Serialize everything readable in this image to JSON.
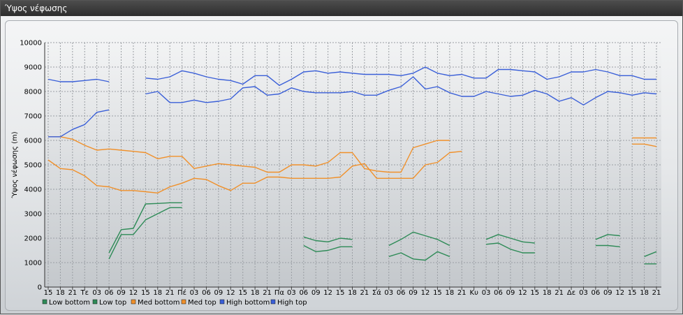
{
  "window": {
    "title": "Ύψος νέφωσης"
  },
  "chart_data": {
    "type": "line",
    "title": "",
    "xlabel": "",
    "ylabel": "Ύψος νέφωσης (m)",
    "ylim": [
      0,
      10000
    ],
    "yticks": [
      0,
      1000,
      2000,
      3000,
      4000,
      5000,
      6000,
      7000,
      8000,
      9000,
      10000
    ],
    "grid": true,
    "legend_position": "bottom-left",
    "categories": [
      "15",
      "18",
      "21",
      "Τε",
      "03",
      "06",
      "09",
      "12",
      "15",
      "18",
      "21",
      "Πέ",
      "03",
      "06",
      "09",
      "12",
      "15",
      "18",
      "21",
      "Πα",
      "03",
      "06",
      "09",
      "12",
      "15",
      "18",
      "21",
      "Σά",
      "03",
      "06",
      "09",
      "12",
      "15",
      "18",
      "21",
      "Κυ",
      "03",
      "06",
      "09",
      "12",
      "15",
      "18",
      "21",
      "Δε",
      "03",
      "06",
      "09",
      "12",
      "15",
      "18",
      "21"
    ],
    "series": [
      {
        "name": "Low bottom",
        "color": "#2e8b57",
        "values": [
          null,
          null,
          null,
          null,
          null,
          1150,
          2150,
          2150,
          2750,
          3000,
          3250,
          3250,
          null,
          null,
          null,
          null,
          null,
          null,
          null,
          null,
          null,
          1700,
          1450,
          1500,
          1650,
          1650,
          null,
          null,
          1250,
          1400,
          1150,
          1100,
          1450,
          1250,
          null,
          null,
          1750,
          1800,
          1550,
          1400,
          1400,
          null,
          null,
          null,
          null,
          1700,
          1700,
          1650,
          null,
          950,
          950
        ]
      },
      {
        "name": "Low top",
        "color": "#2e8b57",
        "values": [
          null,
          null,
          null,
          null,
          null,
          1400,
          2350,
          2400,
          3400,
          3420,
          3450,
          3450,
          null,
          null,
          null,
          null,
          null,
          null,
          null,
          null,
          null,
          2050,
          1900,
          1850,
          2000,
          1950,
          null,
          null,
          1700,
          1950,
          2250,
          2100,
          1950,
          1700,
          null,
          null,
          1950,
          2150,
          2000,
          1850,
          1800,
          null,
          null,
          null,
          null,
          1950,
          2150,
          2100,
          null,
          1250,
          1450
        ]
      },
      {
        "name": "Med bottom",
        "color": "#f0902a",
        "values": [
          5200,
          4850,
          4800,
          4550,
          4150,
          4100,
          3950,
          3950,
          3900,
          3850,
          4100,
          4250,
          4450,
          4400,
          4150,
          3950,
          4250,
          4250,
          4500,
          4500,
          4450,
          4450,
          4450,
          4450,
          4500,
          4950,
          5050,
          4450,
          4450,
          4450,
          4450,
          5000,
          5100,
          5500,
          5550,
          null,
          null,
          null,
          null,
          null,
          null,
          null,
          null,
          null,
          null,
          null,
          null,
          null,
          5850,
          5850,
          5750
        ]
      },
      {
        "name": "Med top",
        "color": "#f0902a",
        "values": [
          6150,
          6150,
          6050,
          5800,
          5600,
          5650,
          5600,
          5550,
          5500,
          5250,
          5350,
          5350,
          4850,
          4950,
          5050,
          5000,
          4950,
          4900,
          4700,
          4700,
          5000,
          5000,
          4950,
          5100,
          5500,
          5500,
          4850,
          4750,
          4700,
          4700,
          5700,
          5850,
          6000,
          6000,
          null,
          null,
          null,
          null,
          null,
          null,
          null,
          null,
          null,
          null,
          null,
          null,
          null,
          null,
          6100,
          6100,
          6100
        ]
      },
      {
        "name": "High bottom",
        "color": "#3a5fd8",
        "values": [
          6150,
          6150,
          6450,
          6650,
          7150,
          7250,
          null,
          null,
          7900,
          8000,
          7550,
          7550,
          7650,
          7550,
          7600,
          7700,
          8150,
          8200,
          7850,
          7900,
          8150,
          8000,
          7950,
          7950,
          7950,
          8000,
          7850,
          7850,
          8050,
          8200,
          8600,
          8100,
          8200,
          7950,
          7800,
          7800,
          8000,
          7900,
          7800,
          7850,
          8050,
          7900,
          7600,
          7750,
          7450,
          7750,
          8000,
          7950,
          7850,
          7950,
          7900
        ]
      },
      {
        "name": "High top",
        "color": "#3a5fd8",
        "values": [
          8500,
          8400,
          8400,
          8450,
          8500,
          8400,
          null,
          null,
          8550,
          8500,
          8600,
          8850,
          8750,
          8600,
          8500,
          8450,
          8300,
          8650,
          8650,
          8250,
          8500,
          8800,
          8850,
          8750,
          8800,
          8750,
          8700,
          8700,
          8700,
          8650,
          8750,
          9000,
          8750,
          8650,
          8700,
          8550,
          8550,
          8900,
          8900,
          8850,
          8800,
          8500,
          8600,
          8800,
          8800,
          8900,
          8800,
          8650,
          8650,
          8500,
          8500
        ]
      }
    ]
  }
}
